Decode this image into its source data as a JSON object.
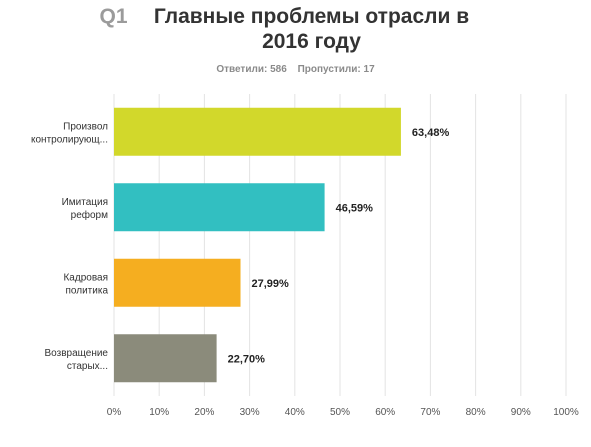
{
  "header": {
    "question_number": "Q1",
    "title": "Главные проблемы отрасли в 2016 году",
    "answered": "Ответили: 586",
    "skipped": "Пропустили: 17"
  },
  "chart_data": {
    "type": "bar",
    "orientation": "horizontal",
    "categories": [
      [
        "Произвол",
        "контролирующ..."
      ],
      [
        "Имитация",
        "реформ"
      ],
      [
        "Кадровая",
        "политика"
      ],
      [
        "Возвращение",
        "старых..."
      ]
    ],
    "values": [
      63.48,
      46.59,
      27.99,
      22.7
    ],
    "value_labels": [
      "63,48%",
      "46,59%",
      "27,99%",
      "22,70%"
    ],
    "colors": [
      "#d2d82b",
      "#32bfc1",
      "#f5ae20",
      "#8b8b7b"
    ],
    "xlim": [
      0,
      100
    ],
    "x_ticks": [
      "0%",
      "10%",
      "20%",
      "30%",
      "40%",
      "50%",
      "60%",
      "70%",
      "80%",
      "90%",
      "100%"
    ],
    "grid": true
  }
}
